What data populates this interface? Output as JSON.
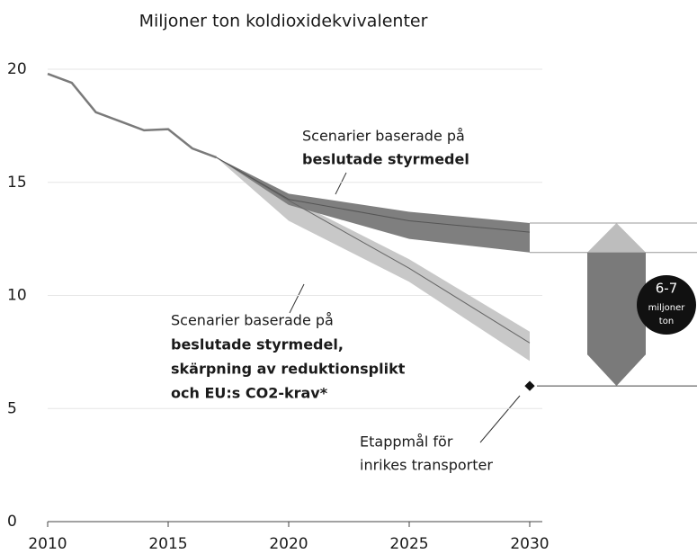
{
  "chart_data": {
    "type": "line",
    "title": "Miljoner ton koldioxidekvivalenter",
    "xlim": [
      2010,
      2030
    ],
    "xticks": [
      2010,
      2015,
      2020,
      2025,
      2030
    ],
    "ylim": [
      0,
      20
    ],
    "yticks": [
      0,
      5,
      10,
      15,
      20
    ],
    "grid": true,
    "history": {
      "color": "#7a7a7a",
      "x": [
        2010,
        2011,
        2012,
        2013,
        2014,
        2015,
        2016,
        2017
      ],
      "values": [
        19.8,
        19.4,
        18.1,
        17.7,
        17.3,
        17.35,
        16.5,
        16.1
      ]
    },
    "scenarios": [
      {
        "color": "#7f7f7f",
        "line_color": "#555555",
        "x": [
          2017,
          2020,
          2025,
          2030
        ],
        "high": [
          16.1,
          14.5,
          13.7,
          13.2
        ],
        "mid": [
          16.1,
          14.25,
          13.3,
          12.8
        ],
        "low": [
          16.1,
          14.0,
          12.5,
          11.9
        ],
        "label_lines": [
          "Scenarier baserade på"
        ],
        "label_bold_lines": [
          "beslutade styrmedel"
        ]
      },
      {
        "color": "#c8c8c8",
        "line_color": "#666666",
        "x": [
          2017,
          2020,
          2025,
          2030
        ],
        "high": [
          16.1,
          14.3,
          11.6,
          8.4
        ],
        "mid": [
          16.1,
          14.2,
          11.2,
          7.9
        ],
        "low": [
          16.1,
          13.3,
          10.6,
          7.1
        ],
        "label_lines": [
          "Scenarier baserade på"
        ],
        "label_bold_lines": [
          "beslutade styrmedel,",
          "skärpning av reduktionsplikt",
          "och EU:s CO2-krav*"
        ]
      }
    ],
    "target": {
      "x": 2030,
      "value": 6,
      "label_lines": [
        "Etappmål för",
        "inrikes transporter"
      ]
    },
    "gap": {
      "label_lines": [
        "6-7",
        "miljoner",
        "ton"
      ]
    }
  }
}
